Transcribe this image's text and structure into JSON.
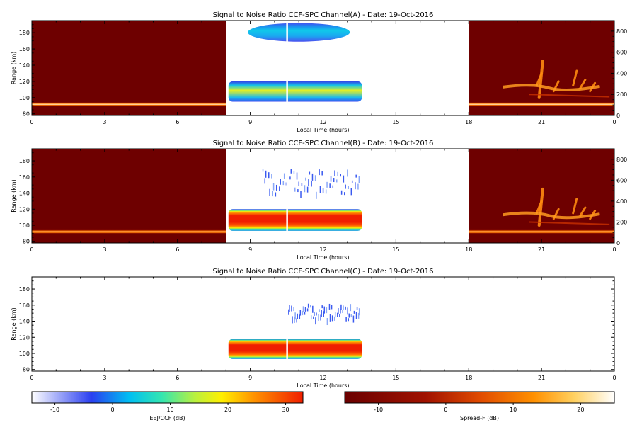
{
  "figure": {
    "panels": [
      {
        "id": "A",
        "title": "Signal to Noise Ratio CCF-SPC Channel(A) - Date: 19-Oct-2016",
        "xlabel": "Local Time (hours)",
        "ylabel": "Range (km)",
        "has_right_axis": true
      },
      {
        "id": "B",
        "title": "Signal to Noise Ratio CCF-SPC Channel(B) - Date: 19-Oct-2016",
        "xlabel": "Local Time (hours)",
        "ylabel": "Range (km)",
        "has_right_axis": true
      },
      {
        "id": "C",
        "title": "Signal to Noise Ratio CCF-SPC Channel(C) - Date: 19-Oct-2016",
        "xlabel": "Local Time (hours)",
        "ylabel": "Range (km)",
        "has_right_axis": false
      }
    ],
    "colorbars": [
      {
        "label": "EEJ/CCF (dB)",
        "ticks": [
          "-10",
          "0",
          "10",
          "20",
          "30"
        ],
        "range": [
          -14,
          33
        ]
      },
      {
        "label": "Spread-F (dB)",
        "ticks": [
          "-10",
          "0",
          "10",
          "20"
        ],
        "range": [
          -15,
          25
        ]
      }
    ]
  },
  "chart_data": [
    {
      "type": "heatmap",
      "title": "Signal to Noise Ratio CCF-SPC Channel(A) - Date: 19-Oct-2016",
      "xlabel": "Local Time (hours)",
      "ylabel": "Range (km)",
      "xlim": [
        0,
        24
      ],
      "ylim": [
        78,
        195
      ],
      "x_ticks": [
        "0",
        "3",
        "6",
        "9",
        "12",
        "15",
        "18",
        "21",
        "0"
      ],
      "y_ticks": [
        "80",
        "100",
        "120",
        "140",
        "160",
        "180"
      ],
      "right_ylim": [
        0,
        900
      ],
      "right_ticks": [
        "0",
        "200",
        "400",
        "600",
        "800"
      ],
      "background_blocks": [
        {
          "x_start": 0,
          "x_end": 8,
          "colormap": "Spread-F",
          "value_db": -13
        },
        {
          "x_start": 18,
          "x_end": 24,
          "colormap": "Spread-F",
          "value_db": -13
        }
      ],
      "echo_regions": [
        {
          "x_start": 8.1,
          "x_end": 13.6,
          "y_low": 95,
          "y_high": 120,
          "peak_db": 18,
          "colormap": "EEJ/CCF"
        },
        {
          "x_start": 8.9,
          "x_end": 13.1,
          "y_low": 169,
          "y_high": 192,
          "peak_db": 3,
          "colormap": "EEJ/CCF"
        }
      ],
      "spread_f_traces": [
        {
          "x_start": 0,
          "x_end": 8,
          "range_km": 92,
          "value_db": 8
        },
        {
          "x_start": 18,
          "x_end": 24,
          "range_km": 92,
          "value_db": 5
        }
      ]
    },
    {
      "type": "heatmap",
      "title": "Signal to Noise Ratio CCF-SPC Channel(B) - Date: 19-Oct-2016",
      "xlabel": "Local Time (hours)",
      "ylabel": "Range (km)",
      "xlim": [
        0,
        24
      ],
      "ylim": [
        78,
        195
      ],
      "x_ticks": [
        "0",
        "3",
        "6",
        "9",
        "12",
        "15",
        "18",
        "21",
        "0"
      ],
      "y_ticks": [
        "80",
        "100",
        "120",
        "140",
        "160",
        "180"
      ],
      "right_ylim": [
        0,
        900
      ],
      "right_ticks": [
        "0",
        "200",
        "400",
        "600",
        "800"
      ],
      "background_blocks": [
        {
          "x_start": 0,
          "x_end": 8,
          "colormap": "Spread-F",
          "value_db": -13
        },
        {
          "x_start": 18,
          "x_end": 24,
          "colormap": "Spread-F",
          "value_db": -13
        }
      ],
      "echo_regions": [
        {
          "x_start": 8.1,
          "x_end": 13.6,
          "y_low": 93,
          "y_high": 120,
          "peak_db": 31,
          "colormap": "EEJ/CCF"
        },
        {
          "x_start": 9.5,
          "x_end": 13.5,
          "y_low": 140,
          "y_high": 170,
          "peak_db": -4,
          "colormap": "EEJ/CCF"
        }
      ],
      "spread_f_traces": [
        {
          "x_start": 0,
          "x_end": 8,
          "range_km": 92,
          "value_db": 8
        },
        {
          "x_start": 18,
          "x_end": 24,
          "range_km": 92,
          "value_db": 5
        }
      ]
    },
    {
      "type": "heatmap",
      "title": "Signal to Noise Ratio CCF-SPC Channel(C) - Date: 19-Oct-2016",
      "xlabel": "Local Time (hours)",
      "ylabel": "Range (km)",
      "xlim": [
        0,
        24
      ],
      "ylim": [
        78,
        195
      ],
      "x_ticks": [
        "0",
        "3",
        "6",
        "9",
        "12",
        "15",
        "18",
        "21",
        "0"
      ],
      "y_ticks": [
        "80",
        "100",
        "120",
        "140",
        "160",
        "180"
      ],
      "background_blocks": [],
      "echo_regions": [
        {
          "x_start": 8.1,
          "x_end": 13.6,
          "y_low": 93,
          "y_high": 118,
          "peak_db": 31,
          "colormap": "EEJ/CCF"
        },
        {
          "x_start": 10.5,
          "x_end": 13.5,
          "y_low": 143,
          "y_high": 162,
          "peak_db": -6,
          "colormap": "EEJ/CCF"
        }
      ],
      "spread_f_traces": []
    }
  ]
}
